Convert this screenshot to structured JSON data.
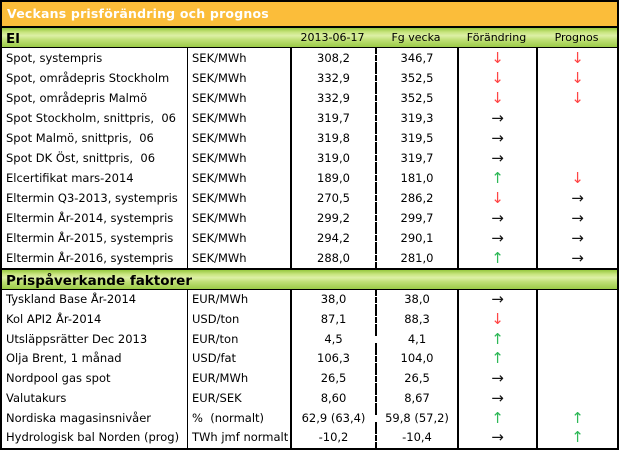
{
  "title": "Veckans prisförändring och prognos",
  "columns": [
    "2013-06-17",
    "Fg vecka",
    "Förändring",
    "Prognos"
  ],
  "arrows": {
    "up": "↑",
    "down": "↓",
    "flat": "→"
  },
  "colors": {
    "title_bar": "#FBBD3A",
    "title_text": "#FFFFFF",
    "section_green_dark": "#96C83F",
    "section_green_light": "#DDF0A6",
    "arrow_red": "#FF4545",
    "arrow_green": "#2EB857",
    "arrow_black": "#141414"
  },
  "sections": [
    {
      "name": "El",
      "rows": [
        {
          "label": "Spot, systempris",
          "unit": "SEK/MWh",
          "now": "308,2",
          "prev": "346,7",
          "change": "down",
          "prognos": "down"
        },
        {
          "label": "Spot, områdepris Stockholm",
          "unit": "SEK/MWh",
          "now": "332,9",
          "prev": "352,5",
          "change": "down",
          "prognos": "down"
        },
        {
          "label": "Spot, områdepris Malmö",
          "unit": "SEK/MWh",
          "now": "332,9",
          "prev": "352,5",
          "change": "down",
          "prognos": "down"
        },
        {
          "label": "Spot Stockholm, snittpris,  06",
          "unit": "SEK/MWh",
          "now": "319,7",
          "prev": "319,3",
          "change": "flat",
          "prognos": ""
        },
        {
          "label": "Spot Malmö, snittpris,  06",
          "unit": "SEK/MWh",
          "now": "319,8",
          "prev": "319,5",
          "change": "flat",
          "prognos": ""
        },
        {
          "label": "Spot DK Öst, snittpris,  06",
          "unit": "SEK/MWh",
          "now": "319,0",
          "prev": "319,7",
          "change": "flat",
          "prognos": ""
        },
        {
          "label": "Elcertifikat mars-2014",
          "unit": "SEK/MWh",
          "now": "189,0",
          "prev": "181,0",
          "change": "up",
          "prognos": "down"
        },
        {
          "label": "Eltermin Q3-2013, systempris",
          "unit": "SEK/MWh",
          "now": "270,5",
          "prev": "286,2",
          "change": "down",
          "prognos": "flat"
        },
        {
          "label": "Eltermin År-2014, systempris",
          "unit": "SEK/MWh",
          "now": "299,2",
          "prev": "299,7",
          "change": "flat",
          "prognos": "flat"
        },
        {
          "label": "Eltermin År-2015, systempris",
          "unit": "SEK/MWh",
          "now": "294,2",
          "prev": "290,1",
          "change": "flat",
          "prognos": "flat"
        },
        {
          "label": "Eltermin År-2016, systempris",
          "unit": "SEK/MWh",
          "now": "288,0",
          "prev": "281,0",
          "change": "up",
          "prognos": "flat"
        }
      ]
    },
    {
      "name": "Prispåverkande faktorer",
      "rows": [
        {
          "label": "Tyskland Base År-2014",
          "unit": "EUR/MWh",
          "now": "38,0",
          "prev": "38,0",
          "change": "flat",
          "prognos": ""
        },
        {
          "label": "Kol API2 År-2014",
          "unit": "USD/ton",
          "now": "87,1",
          "prev": "88,3",
          "change": "down",
          "prognos": ""
        },
        {
          "label": "Utsläppsrätter Dec 2013",
          "unit": "EUR/ton",
          "now": "4,5",
          "prev": "4,1",
          "change": "up",
          "prognos": ""
        },
        {
          "label": "Olja Brent, 1 månad",
          "unit": "USD/fat",
          "now": "106,3",
          "prev": "104,0",
          "change": "up",
          "prognos": ""
        },
        {
          "label": "Nordpool gas spot",
          "unit": "EUR/MWh",
          "now": "26,5",
          "prev": "26,5",
          "change": "flat",
          "prognos": ""
        },
        {
          "label": "Valutakurs",
          "unit": "EUR/SEK",
          "now": "8,60",
          "prev": "8,67",
          "change": "flat",
          "prognos": ""
        },
        {
          "label": "Nordiska magasinsnivåer",
          "unit": "%  (normalt)",
          "now": "62,9 (63,4)",
          "prev": "59,8 (57,2)",
          "change": "up",
          "prognos": "up"
        },
        {
          "label": "Hydrologisk bal Norden (prog)",
          "unit": "TWh jmf normalt",
          "now": "-10,2",
          "prev": "-10,4",
          "change": "flat",
          "prognos": "up"
        }
      ]
    }
  ]
}
